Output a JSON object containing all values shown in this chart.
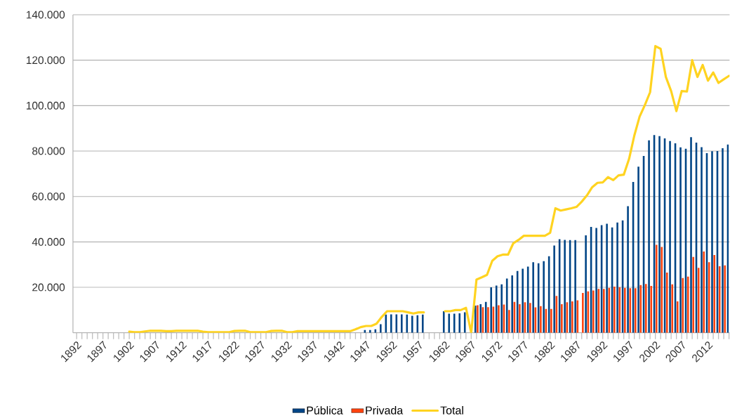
{
  "chart_data": {
    "type": "bar",
    "categories": [
      "1892",
      null,
      null,
      null,
      null,
      "1897",
      null,
      null,
      null,
      null,
      "1902",
      null,
      null,
      null,
      null,
      "1907",
      null,
      null,
      null,
      null,
      "1912",
      null,
      null,
      null,
      null,
      "1917",
      null,
      null,
      null,
      null,
      "1922",
      null,
      null,
      null,
      null,
      "1927",
      null,
      null,
      null,
      null,
      "1932",
      null,
      null,
      null,
      null,
      "1937",
      null,
      null,
      null,
      null,
      "1942",
      null,
      null,
      null,
      null,
      "1947",
      null,
      null,
      null,
      null,
      "1952",
      null,
      null,
      null,
      null,
      "1957",
      null,
      null,
      null,
      null,
      "1962",
      null,
      null,
      null,
      null,
      "1967",
      null,
      null,
      null,
      null,
      "1972",
      null,
      null,
      null,
      null,
      "1977",
      null,
      null,
      null,
      null,
      "1982",
      null,
      null,
      null,
      null,
      "1987",
      null,
      null,
      null,
      null,
      "1992",
      null,
      null,
      null,
      null,
      "1997",
      null,
      null,
      null,
      null,
      "2002",
      null,
      null,
      null,
      null,
      "2007",
      null,
      null,
      null,
      null,
      "2012",
      null,
      null,
      null,
      null
    ],
    "series": [
      {
        "name": "Pública",
        "color": "#004586",
        "values": [
          null,
          null,
          null,
          null,
          null,
          null,
          null,
          null,
          null,
          null,
          null,
          null,
          null,
          null,
          null,
          null,
          null,
          null,
          null,
          null,
          null,
          null,
          null,
          null,
          null,
          null,
          null,
          null,
          null,
          null,
          null,
          null,
          null,
          null,
          null,
          null,
          null,
          null,
          null,
          null,
          null,
          null,
          null,
          null,
          null,
          null,
          null,
          null,
          null,
          null,
          null,
          null,
          null,
          null,
          null,
          1200,
          1200,
          1500,
          3800,
          8000,
          8100,
          8100,
          8100,
          8000,
          7500,
          7700,
          8000,
          null,
          null,
          null,
          9500,
          8400,
          8400,
          8600,
          9000,
          null,
          12000,
          12600,
          13600,
          20000,
          20800,
          21300,
          23900,
          25300,
          27200,
          28200,
          29100,
          31100,
          30600,
          31500,
          33700,
          38400,
          41200,
          40900,
          40800,
          40800,
          null,
          42900,
          46600,
          46100,
          47400,
          48000,
          46400,
          48500,
          49500,
          55700,
          66400,
          73100,
          77800,
          84700,
          87000,
          86600,
          85600,
          84400,
          83400,
          81600,
          81000,
          86100,
          83700,
          81700,
          79100,
          79900,
          80000,
          81200,
          82900
        ]
      },
      {
        "name": "Privada",
        "color": "#ff420e",
        "values": [
          null,
          null,
          null,
          null,
          null,
          null,
          null,
          null,
          null,
          null,
          null,
          null,
          null,
          null,
          null,
          null,
          null,
          null,
          null,
          null,
          null,
          null,
          null,
          null,
          null,
          null,
          null,
          null,
          null,
          null,
          null,
          null,
          null,
          null,
          null,
          null,
          null,
          null,
          null,
          null,
          null,
          null,
          null,
          null,
          null,
          null,
          null,
          null,
          null,
          null,
          null,
          null,
          null,
          null,
          null,
          null,
          null,
          null,
          null,
          null,
          null,
          null,
          null,
          null,
          null,
          null,
          null,
          null,
          null,
          null,
          null,
          null,
          null,
          null,
          null,
          null,
          12100,
          11300,
          11300,
          11500,
          12100,
          12400,
          10000,
          13600,
          12600,
          13400,
          13100,
          11200,
          11700,
          10500,
          10500,
          16200,
          12600,
          13400,
          13800,
          14300,
          17500,
          18200,
          18600,
          19300,
          19300,
          19800,
          20300,
          20100,
          19800,
          19600,
          19600,
          21000,
          21500,
          20600,
          38700,
          37800,
          26500,
          21300,
          13800,
          24100,
          24700,
          33400,
          28600,
          35800,
          31100,
          34200,
          29300,
          29700,
          null
        ]
      },
      {
        "name": "Total",
        "type": "line",
        "color": "#ffd320",
        "values": [
          null,
          null,
          null,
          null,
          null,
          null,
          null,
          null,
          null,
          null,
          500,
          300,
          300,
          600,
          900,
          900,
          900,
          700,
          700,
          900,
          900,
          900,
          900,
          900,
          500,
          300,
          300,
          300,
          300,
          300,
          800,
          900,
          900,
          300,
          300,
          300,
          300,
          800,
          900,
          900,
          300,
          300,
          700,
          700,
          700,
          700,
          700,
          700,
          700,
          700,
          700,
          700,
          700,
          1500,
          2500,
          3000,
          3000,
          4000,
          7000,
          9500,
          9500,
          9500,
          9500,
          9000,
          8500,
          9000,
          9000,
          null,
          null,
          null,
          9500,
          9500,
          10000,
          10000,
          11000,
          0,
          23400,
          24400,
          25500,
          31700,
          33700,
          34400,
          34400,
          39400,
          40900,
          42700,
          42700,
          42700,
          42700,
          42700,
          44000,
          54800,
          53800,
          54300,
          54800,
          55400,
          57700,
          60500,
          64100,
          66000,
          66200,
          68500,
          67200,
          69300,
          69600,
          76500,
          86800,
          95100,
          100200,
          105900,
          126200,
          125000,
          112600,
          106400,
          97600,
          106400,
          106200,
          120000,
          112600,
          117900,
          111000,
          114600,
          110000,
          111600,
          113100
        ]
      }
    ],
    "ylim": [
      0,
      140000
    ],
    "yticks": [
      {
        "value": 20000,
        "label": "20.000"
      },
      {
        "value": 40000,
        "label": "40.000"
      },
      {
        "value": 60000,
        "label": "60.000"
      },
      {
        "value": 80000,
        "label": "80.000"
      },
      {
        "value": 100000,
        "label": "100.000"
      },
      {
        "value": 120000,
        "label": "120.000"
      },
      {
        "value": 140000,
        "label": "140.000"
      }
    ],
    "grid": "y",
    "legend": "bottom"
  }
}
